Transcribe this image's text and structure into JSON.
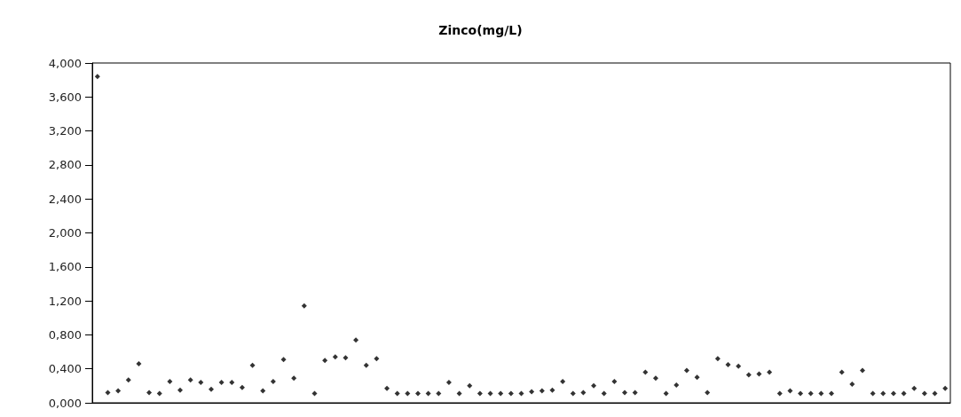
{
  "chart_data": {
    "type": "scatter",
    "title": "Zinco(mg/L)",
    "categories": [
      null,
      null,
      null,
      null,
      null,
      null,
      null,
      null,
      null,
      null,
      null,
      null,
      null,
      null,
      null,
      null,
      null,
      null,
      null,
      null,
      null,
      null,
      null,
      null,
      null,
      null,
      null,
      null,
      null,
      null,
      null,
      null,
      null,
      null,
      null,
      null,
      null,
      null,
      null,
      null,
      null,
      null,
      null,
      null,
      null,
      null,
      null,
      null,
      null,
      null,
      null,
      null,
      null,
      null,
      null,
      null,
      null,
      null,
      null,
      null,
      null,
      null,
      null,
      null,
      null,
      null,
      null,
      null,
      null,
      null,
      null,
      null,
      null,
      null,
      null,
      null,
      null,
      null,
      null,
      null,
      null,
      null,
      null
    ],
    "series": [
      {
        "color": "#000000",
        "values": [
          3.84,
          0.12,
          0.14,
          0.27,
          0.46,
          0.12,
          0.11,
          0.25,
          0.15,
          0.27,
          0.24,
          0.16,
          0.24,
          0.24,
          0.18,
          0.44,
          0.14,
          0.25,
          0.51,
          0.29,
          1.14,
          0.11,
          0.5,
          0.54,
          0.53,
          0.74,
          0.44,
          0.52,
          0.17,
          0.11,
          0.11,
          0.11,
          0.11,
          0.11,
          0.24,
          0.11,
          0.2,
          0.11,
          0.11,
          0.11,
          0.11,
          0.11,
          0.13,
          0.14,
          0.15,
          0.25,
          0.11,
          0.12,
          0.2,
          0.11,
          0.25,
          0.12,
          0.12,
          0.36,
          0.29,
          0.11,
          0.21,
          0.38,
          0.3,
          0.12,
          0.52,
          0.45,
          0.43,
          0.33,
          0.34,
          0.36,
          0.11,
          0.14,
          0.11,
          0.11,
          0.11,
          0.11,
          0.36,
          0.22,
          0.38,
          0.11,
          0.11,
          0.11,
          0.11,
          0.17,
          0.11,
          0.11,
          0.17
        ]
      }
    ],
    "ylim": [
      0,
      4
    ],
    "yticks": [
      {
        "value": 0,
        "label": "0,000"
      },
      {
        "value": 0.4,
        "label": "0,400"
      },
      {
        "value": 0.8,
        "label": "0,800"
      },
      {
        "value": 1.2,
        "label": "1,200"
      },
      {
        "value": 1.6,
        "label": "1,600"
      },
      {
        "value": 2,
        "label": "2,000"
      },
      {
        "value": 2.4,
        "label": "2,400"
      },
      {
        "value": 2.8,
        "label": "2,800"
      },
      {
        "value": 3.2,
        "label": "3,200"
      },
      {
        "value": 3.6,
        "label": "3,600"
      },
      {
        "value": 4,
        "label": "4,000"
      }
    ],
    "marker": "diamond",
    "grid": false
  }
}
